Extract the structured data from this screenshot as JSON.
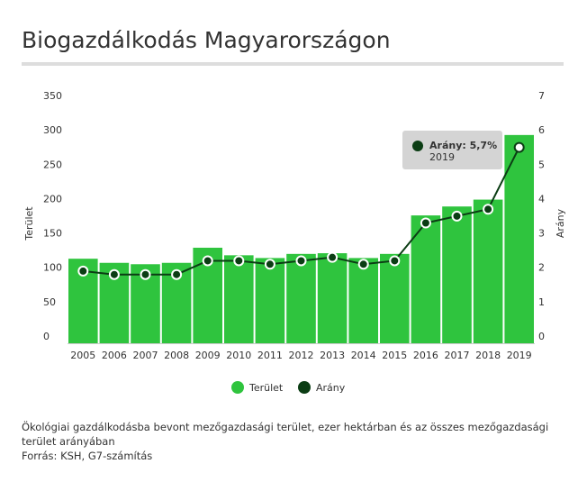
{
  "title": "Biogazdálkodás Magyarországon",
  "note": "Ökológiai gazdálkodásba bevont mezőgazdasági terület, ezer hektárban és az összes mezőgazdasági terület arányában",
  "source": "Forrás: KSH, G7-számítás",
  "colors": {
    "bar": "#2fc43e",
    "line": "#0b3d14",
    "tooltip": "#d4d4d4"
  },
  "tooltip": {
    "label": "Arány: 5,7%",
    "year": "2019"
  },
  "chart_data": {
    "type": "bar+line",
    "categories": [
      "2005",
      "2006",
      "2007",
      "2008",
      "2009",
      "2010",
      "2011",
      "2012",
      "2013",
      "2014",
      "2015",
      "2016",
      "2017",
      "2018",
      "2019"
    ],
    "series": [
      {
        "name": "Terület",
        "type": "bar",
        "axis": "left",
        "values": [
          123,
          117,
          115,
          117,
          139,
          128,
          124,
          130,
          131,
          124,
          130,
          186,
          199,
          209,
          303
        ]
      },
      {
        "name": "Arány",
        "type": "line",
        "axis": "right",
        "values": [
          2.1,
          2.0,
          2.0,
          2.0,
          2.4,
          2.4,
          2.3,
          2.4,
          2.5,
          2.3,
          2.4,
          3.5,
          3.7,
          3.9,
          5.7
        ]
      }
    ],
    "ylabel": "Terület",
    "y2label": "Arány",
    "ylim": [
      0,
      350
    ],
    "y2lim": [
      0,
      7
    ],
    "yticks": [
      "0",
      "50",
      "100",
      "150",
      "200",
      "250",
      "300",
      "350"
    ],
    "y2ticks": [
      "0",
      "1",
      "2",
      "3",
      "4",
      "5",
      "6",
      "7"
    ],
    "legend": "bottom-center"
  }
}
